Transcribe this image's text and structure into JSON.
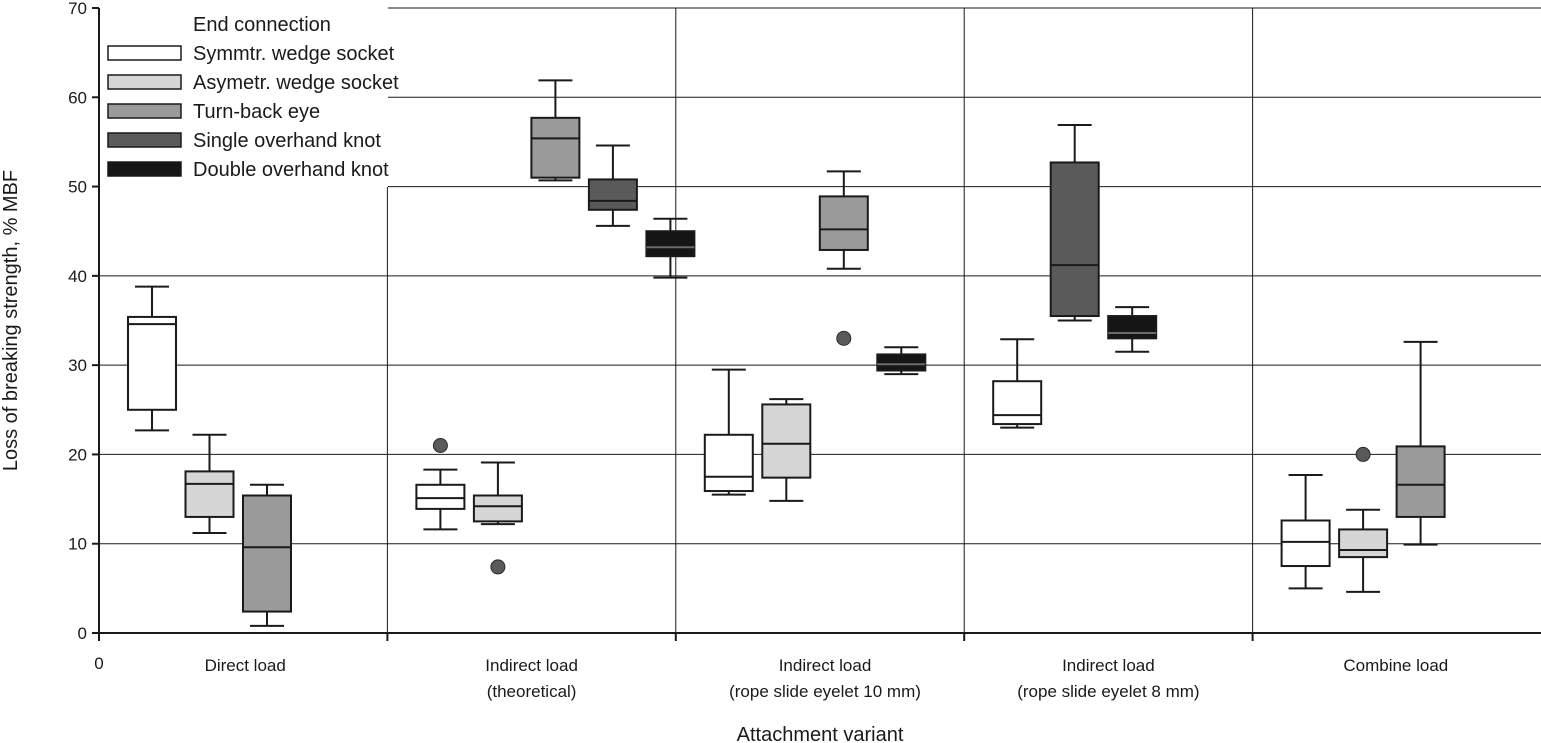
{
  "chart_data": {
    "type": "box",
    "xlabel": "Attachment variant",
    "ylabel": "Loss of breaking strength, % MBF",
    "ylim": [
      0,
      70
    ],
    "yticks": [
      0,
      10,
      20,
      30,
      40,
      50,
      60,
      70
    ],
    "x_origin_label": "0",
    "grid": true,
    "legend": {
      "title": "End connection",
      "placement": "top-left",
      "entries": [
        {
          "name": "Symmtr. wedge socket",
          "color": "#ffffff"
        },
        {
          "name": "Asymetr. wedge socket",
          "color": "#d6d6d6"
        },
        {
          "name": "Turn-back eye",
          "color": "#9a9a9a"
        },
        {
          "name": "Single overhand knot",
          "color": "#5a5a5a"
        },
        {
          "name": "Double overhand knot",
          "color": "#151515"
        }
      ]
    },
    "categories": [
      {
        "line1": "Direct load",
        "line2": ""
      },
      {
        "line1": "Indirect load",
        "line2": "(theoretical)"
      },
      {
        "line1": "Indirect load",
        "line2": "(rope slide eyelet 10 mm)"
      },
      {
        "line1": "Indirect load",
        "line2": "(rope slide eyelet 8 mm)"
      },
      {
        "line1": "Combine load",
        "line2": ""
      }
    ],
    "boxes": [
      {
        "category": 0,
        "slot": 0,
        "series": 0,
        "min": 22.7,
        "q1": 25.0,
        "median": 34.6,
        "q3": 35.4,
        "max": 38.8,
        "outliers": []
      },
      {
        "category": 0,
        "slot": 1,
        "series": 1,
        "min": 11.2,
        "q1": 13.0,
        "median": 16.7,
        "q3": 18.1,
        "max": 22.2,
        "outliers": []
      },
      {
        "category": 0,
        "slot": 2,
        "series": 2,
        "min": 0.8,
        "q1": 2.4,
        "median": 9.6,
        "q3": 15.4,
        "max": 16.6,
        "outliers": []
      },
      {
        "category": 1,
        "slot": 0,
        "series": 0,
        "min": 11.6,
        "q1": 13.9,
        "median": 15.1,
        "q3": 16.6,
        "max": 18.3,
        "outliers": [
          21.0
        ]
      },
      {
        "category": 1,
        "slot": 1,
        "series": 1,
        "min": 12.2,
        "q1": 12.5,
        "median": 14.2,
        "q3": 15.4,
        "max": 19.1,
        "outliers": [
          7.4
        ]
      },
      {
        "category": 1,
        "slot": 2,
        "series": 2,
        "min": 50.7,
        "q1": 51.0,
        "median": 55.4,
        "q3": 57.7,
        "max": 61.9,
        "outliers": []
      },
      {
        "category": 1,
        "slot": 3,
        "series": 3,
        "min": 45.6,
        "q1": 47.4,
        "median": 48.4,
        "q3": 50.8,
        "max": 54.6,
        "outliers": []
      },
      {
        "category": 1,
        "slot": 4,
        "series": 4,
        "min": 39.8,
        "q1": 42.2,
        "median": 43.2,
        "q3": 45.0,
        "max": 46.4,
        "outliers": []
      },
      {
        "category": 2,
        "slot": 0,
        "series": 0,
        "min": 15.5,
        "q1": 15.9,
        "median": 17.5,
        "q3": 22.2,
        "max": 29.5,
        "outliers": []
      },
      {
        "category": 2,
        "slot": 1,
        "series": 1,
        "min": 14.8,
        "q1": 17.4,
        "median": 21.2,
        "q3": 25.6,
        "max": 26.2,
        "outliers": []
      },
      {
        "category": 2,
        "slot": 2,
        "series": 2,
        "min": 40.8,
        "q1": 42.9,
        "median": 45.2,
        "q3": 48.9,
        "max": 51.7,
        "outliers": [
          33.0
        ]
      },
      {
        "category": 2,
        "slot": 3,
        "series": 4,
        "min": 29.0,
        "q1": 29.4,
        "median": 30.1,
        "q3": 31.2,
        "max": 32.0,
        "outliers": []
      },
      {
        "category": 3,
        "slot": 0,
        "series": 0,
        "min": 23.0,
        "q1": 23.4,
        "median": 24.4,
        "q3": 28.2,
        "max": 32.9,
        "outliers": []
      },
      {
        "category": 3,
        "slot": 1,
        "series": 3,
        "min": 35.0,
        "q1": 35.5,
        "median": 41.2,
        "q3": 52.7,
        "max": 56.9,
        "outliers": []
      },
      {
        "category": 3,
        "slot": 2,
        "series": 4,
        "min": 31.5,
        "q1": 33.0,
        "median": 33.6,
        "q3": 35.5,
        "max": 36.5,
        "outliers": []
      },
      {
        "category": 4,
        "slot": 0,
        "series": 0,
        "min": 5.0,
        "q1": 7.5,
        "median": 10.2,
        "q3": 12.6,
        "max": 17.7,
        "outliers": []
      },
      {
        "category": 4,
        "slot": 1,
        "series": 1,
        "min": 4.6,
        "q1": 8.5,
        "median": 9.3,
        "q3": 11.6,
        "max": 13.8,
        "outliers": [
          20.0
        ]
      },
      {
        "category": 4,
        "slot": 2,
        "series": 2,
        "min": 9.9,
        "q1": 13.0,
        "median": 16.6,
        "q3": 20.9,
        "max": 32.6,
        "outliers": []
      }
    ]
  }
}
